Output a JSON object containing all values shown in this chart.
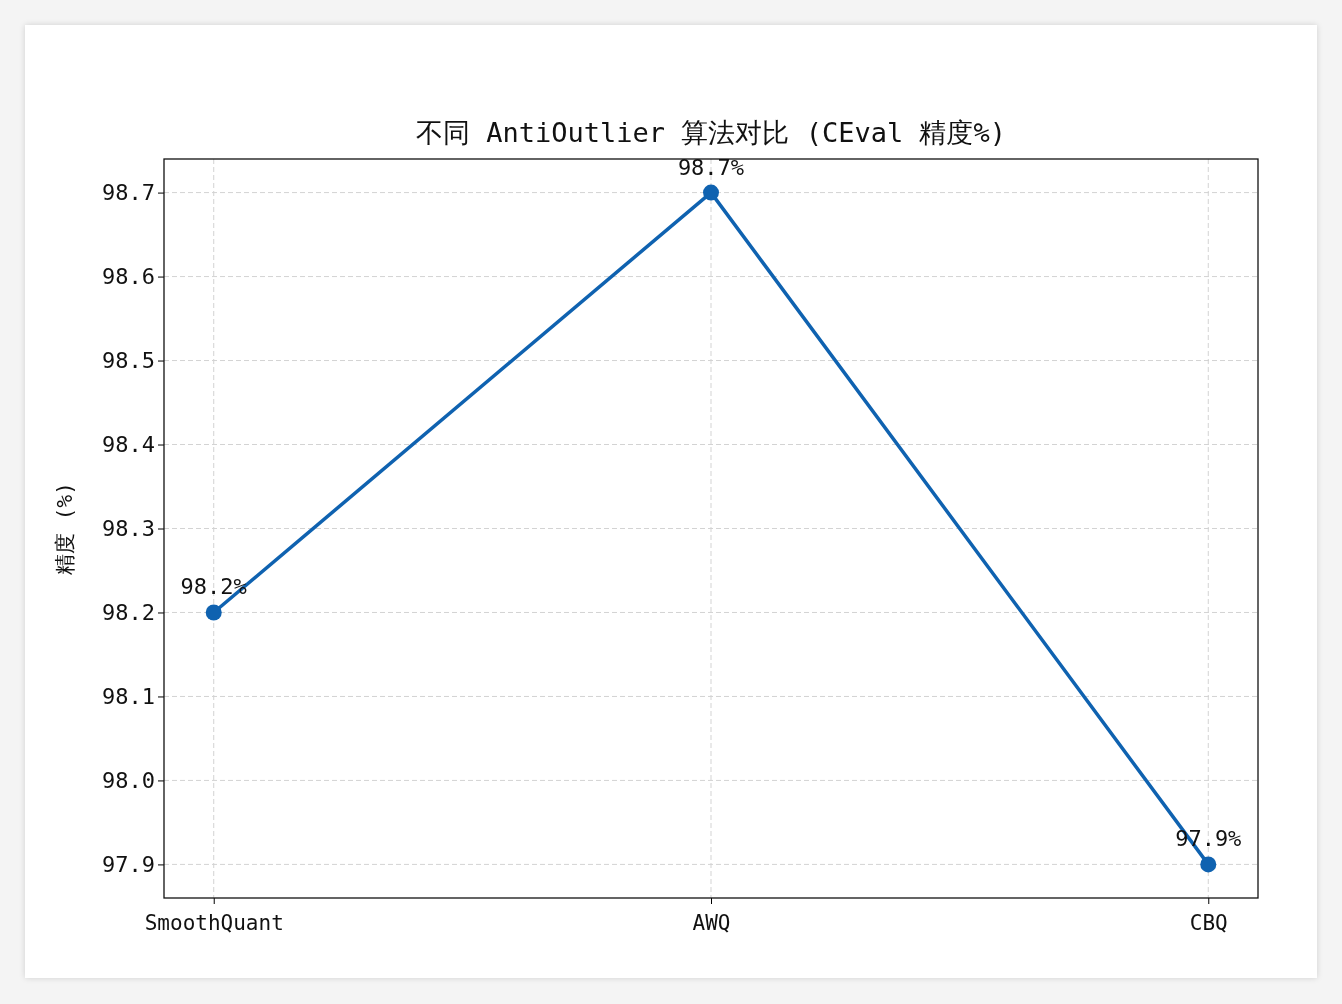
{
  "chart_data": {
    "type": "line",
    "title": "不同 AntiOutlier 算法对比 (CEval 精度%)",
    "ylabel": "精度 (%)",
    "categories": [
      "SmoothQuant",
      "AWQ",
      "CBQ"
    ],
    "series": [
      {
        "color": "#0f62b0",
        "values": [
          98.2,
          98.7,
          97.9
        ],
        "value_labels": [
          "98.2%",
          "98.7%",
          "97.9%"
        ]
      }
    ],
    "ylim": [
      97.86,
      98.74
    ],
    "yticks": [
      97.9,
      {
        "value": 98.0,
        "label": "98.0"
      },
      98.1,
      98.2,
      98.3,
      98.4,
      98.5,
      98.6,
      98.7
    ],
    "grid": true,
    "marker": "circle",
    "line_style": "solid"
  }
}
